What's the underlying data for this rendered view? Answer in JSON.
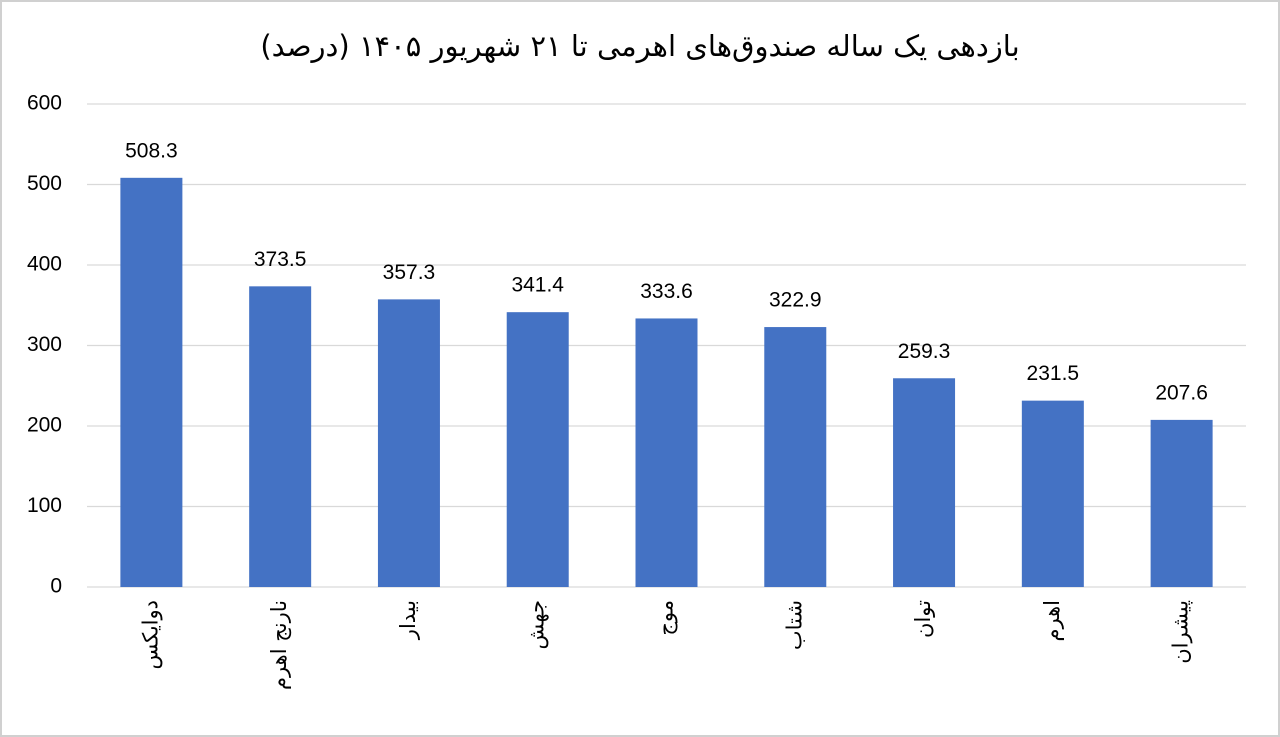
{
  "chart_data": {
    "type": "bar",
    "title": "بازدهی یک ساله صندوق‌های اهرمی تا ۲۱ شهریور ۱۴۰۵ (درصد)",
    "categories": [
      "دوایکس",
      "نارنج اهرم",
      "بیدار",
      "جهش",
      "موج",
      "شتاب",
      "توان",
      "اهرم",
      "پیشران"
    ],
    "values": [
      508.3,
      373.5,
      357.3,
      341.4,
      333.6,
      322.9,
      259.3,
      231.5,
      207.6
    ],
    "color": "#4472c4",
    "ylim": [
      0,
      600
    ],
    "yticks": [
      0,
      100,
      200,
      300,
      400,
      500,
      600
    ],
    "grid": true
  }
}
